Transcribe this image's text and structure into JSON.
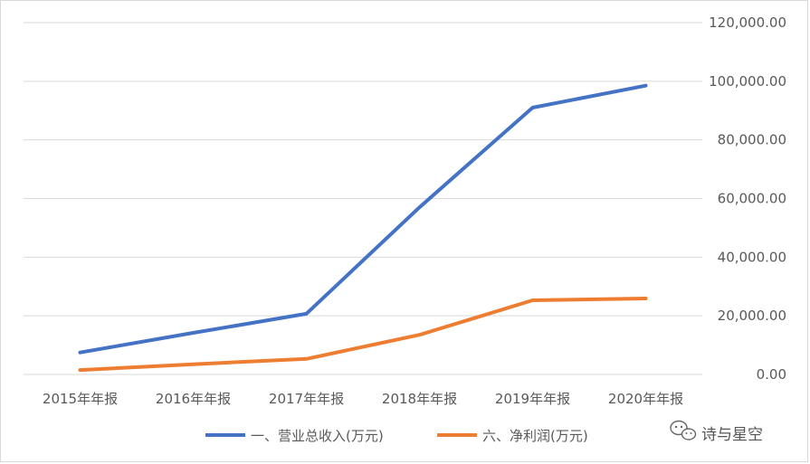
{
  "chart_data": {
    "type": "line",
    "categories": [
      "2015年年报",
      "2016年年报",
      "2017年年报",
      "2018年年报",
      "2019年年报",
      "2020年年报"
    ],
    "series": [
      {
        "name": "一、营业总收入(万元)",
        "color": "#4472C4",
        "values": [
          7500,
          14200,
          20700,
          57000,
          91000,
          98500
        ]
      },
      {
        "name": "六、净利润(万元)",
        "color": "#ED7D31",
        "values": [
          1500,
          3500,
          5300,
          13500,
          25300,
          25900
        ]
      }
    ],
    "yticks": [
      "0.00",
      "20,000.00",
      "40,000.00",
      "60,000.00",
      "80,000.00",
      "100,000.00",
      "120,000.00"
    ],
    "ylim": [
      0,
      120000
    ],
    "y_axis_side": "right",
    "grid": true,
    "legend_position": "bottom"
  },
  "watermark": {
    "text": "诗与星空",
    "icon": "wechat-icon"
  }
}
